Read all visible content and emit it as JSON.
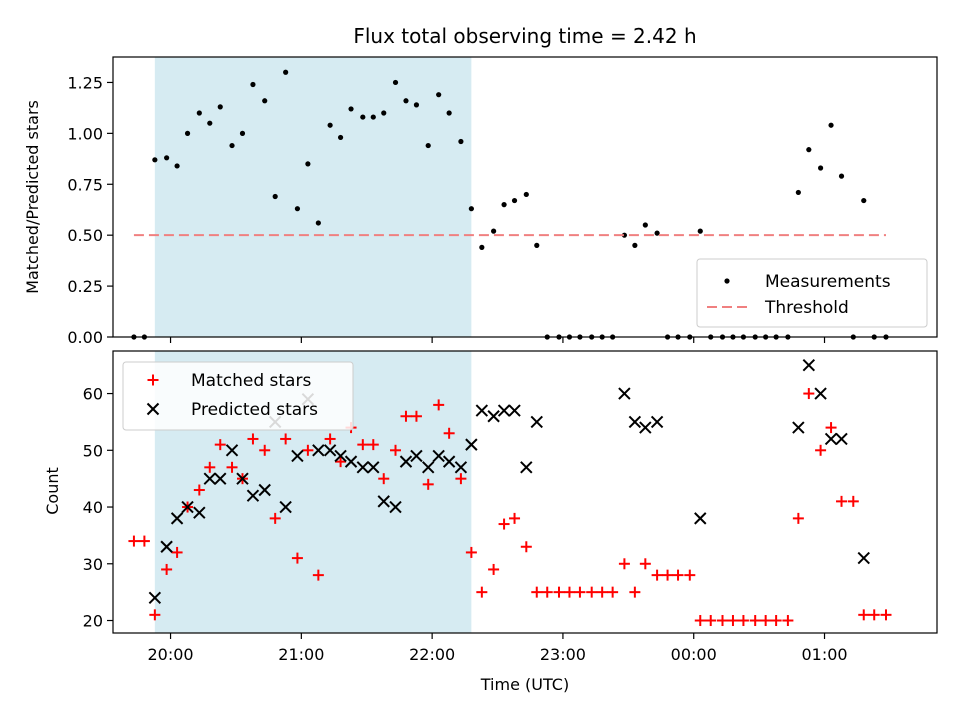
{
  "chart_data": [
    {
      "type": "scatter",
      "title": "Flux total observing time = 2.42 h",
      "xlabel": "",
      "ylabel": "Matched/Predicted stars",
      "ylim": [
        0,
        1.375
      ],
      "yticks": [
        "0.00",
        "0.25",
        "0.50",
        "0.75",
        "1.00",
        "1.25"
      ],
      "xlim_hours": [
        19.56,
        25.86
      ],
      "x_unit": "hours UTC (values above 24 are after midnight)",
      "xticks": [],
      "shaded_span_hours": [
        19.88,
        22.3
      ],
      "shaded_color": "#add8e6",
      "threshold": 0.5,
      "legend_position": "lower-right",
      "series": [
        {
          "name": "Measurements",
          "style": "dot",
          "color": "#000000",
          "x": [
            19.72,
            19.8,
            19.88,
            19.97,
            20.05,
            20.13,
            20.22,
            20.3,
            20.38,
            20.47,
            20.55,
            20.63,
            20.72,
            20.8,
            20.88,
            20.97,
            21.05,
            21.13,
            21.22,
            21.3,
            21.38,
            21.47,
            21.55,
            21.63,
            21.72,
            21.8,
            21.88,
            21.97,
            22.05,
            22.13,
            22.22,
            22.3,
            22.38,
            22.47,
            22.55,
            22.63,
            22.72,
            22.8,
            22.88,
            22.97,
            23.05,
            23.13,
            23.22,
            23.3,
            23.38,
            23.47,
            23.55,
            23.63,
            23.72,
            23.8,
            23.88,
            23.97,
            24.05,
            24.13,
            24.22,
            24.3,
            24.38,
            24.47,
            24.55,
            24.63,
            24.72,
            24.8,
            24.88,
            24.97,
            25.05,
            25.13,
            25.22,
            25.3,
            25.38,
            25.47
          ],
          "y": [
            0.0,
            0.0,
            0.87,
            0.88,
            0.84,
            1.0,
            1.1,
            1.05,
            1.13,
            0.94,
            1.0,
            1.24,
            1.16,
            0.69,
            1.3,
            0.63,
            0.85,
            0.56,
            1.04,
            0.98,
            1.12,
            1.08,
            1.08,
            1.1,
            1.25,
            1.16,
            1.14,
            0.94,
            1.19,
            1.1,
            0.96,
            0.63,
            0.44,
            0.52,
            0.65,
            0.67,
            0.7,
            0.45,
            0.0,
            0.0,
            0.0,
            0.0,
            0.0,
            0.0,
            0.0,
            0.5,
            0.45,
            0.55,
            0.51,
            0.0,
            0.0,
            0.0,
            0.52,
            0.0,
            0.0,
            0.0,
            0.0,
            0.0,
            0.0,
            0.0,
            0.0,
            0.71,
            0.92,
            0.83,
            1.04,
            0.79,
            0.0,
            0.67,
            0.0,
            0.0
          ]
        },
        {
          "name": "Threshold",
          "style": "dashed-line",
          "color": "#f08080",
          "x": [
            19.72,
            25.47
          ],
          "y": [
            0.5,
            0.5
          ]
        }
      ]
    },
    {
      "type": "scatter",
      "title": "",
      "xlabel": "Time (UTC)",
      "ylabel": "Count",
      "ylim": [
        17.8,
        67.5
      ],
      "yticks": [
        "20",
        "30",
        "40",
        "50",
        "60"
      ],
      "xlim_hours": [
        19.56,
        25.86
      ],
      "xticks": [
        {
          "hour": 20,
          "label": "20:00"
        },
        {
          "hour": 21,
          "label": "21:00"
        },
        {
          "hour": 22,
          "label": "22:00"
        },
        {
          "hour": 23,
          "label": "23:00"
        },
        {
          "hour": 24,
          "label": "00:00"
        },
        {
          "hour": 25,
          "label": "01:00"
        }
      ],
      "shaded_span_hours": [
        19.88,
        22.3
      ],
      "shaded_color": "#add8e6",
      "legend_position": "upper-left",
      "series": [
        {
          "name": "Matched stars",
          "style": "plus",
          "color": "#ff0000",
          "x": [
            19.72,
            19.8,
            19.88,
            19.97,
            20.05,
            20.13,
            20.22,
            20.3,
            20.38,
            20.47,
            20.55,
            20.63,
            20.72,
            20.8,
            20.88,
            20.97,
            21.05,
            21.13,
            21.22,
            21.3,
            21.38,
            21.47,
            21.55,
            21.63,
            21.72,
            21.8,
            21.88,
            21.97,
            22.05,
            22.13,
            22.22,
            22.3,
            22.38,
            22.47,
            22.55,
            22.63,
            22.72,
            22.8,
            22.88,
            22.97,
            23.05,
            23.13,
            23.22,
            23.3,
            23.38,
            23.47,
            23.55,
            23.63,
            23.72,
            23.8,
            23.88,
            23.97,
            24.05,
            24.13,
            24.22,
            24.3,
            24.38,
            24.47,
            24.55,
            24.63,
            24.72,
            24.8,
            24.88,
            24.97,
            25.05,
            25.13,
            25.22,
            25.3,
            25.38,
            25.47
          ],
          "y": [
            34,
            34,
            21,
            29,
            32,
            40,
            43,
            47,
            51,
            47,
            45,
            52,
            50,
            38,
            52,
            31,
            50,
            28,
            52,
            48,
            54,
            51,
            51,
            45,
            50,
            56,
            56,
            44,
            58,
            53,
            45,
            32,
            25,
            29,
            37,
            38,
            33,
            25,
            25,
            25,
            25,
            25,
            25,
            25,
            25,
            30,
            25,
            30,
            28,
            28,
            28,
            28,
            20,
            20,
            20,
            20,
            20,
            20,
            20,
            20,
            20,
            38,
            60,
            50,
            54,
            41,
            41,
            21,
            21,
            21
          ]
        },
        {
          "name": "Predicted stars",
          "style": "x",
          "color": "#000000",
          "x": [
            19.88,
            19.97,
            20.05,
            20.13,
            20.22,
            20.3,
            20.38,
            20.47,
            20.55,
            20.63,
            20.72,
            20.8,
            20.88,
            20.97,
            21.05,
            21.13,
            21.22,
            21.3,
            21.38,
            21.47,
            21.55,
            21.63,
            21.72,
            21.8,
            21.88,
            21.97,
            22.05,
            22.13,
            22.22,
            22.3,
            22.38,
            22.47,
            22.55,
            22.63,
            22.72,
            22.8,
            23.47,
            23.55,
            23.63,
            23.72,
            24.05,
            24.8,
            24.88,
            24.97,
            25.05,
            25.13,
            25.3
          ],
          "y": [
            24,
            33,
            38,
            40,
            39,
            45,
            45,
            50,
            45,
            42,
            43,
            55,
            40,
            49,
            59,
            50,
            50,
            49,
            48,
            47,
            47,
            41,
            40,
            48,
            49,
            47,
            49,
            48,
            47,
            51,
            57,
            56,
            57,
            57,
            47,
            55,
            60,
            55,
            54,
            55,
            38,
            54,
            65,
            60,
            52,
            52,
            31
          ]
        }
      ]
    }
  ]
}
